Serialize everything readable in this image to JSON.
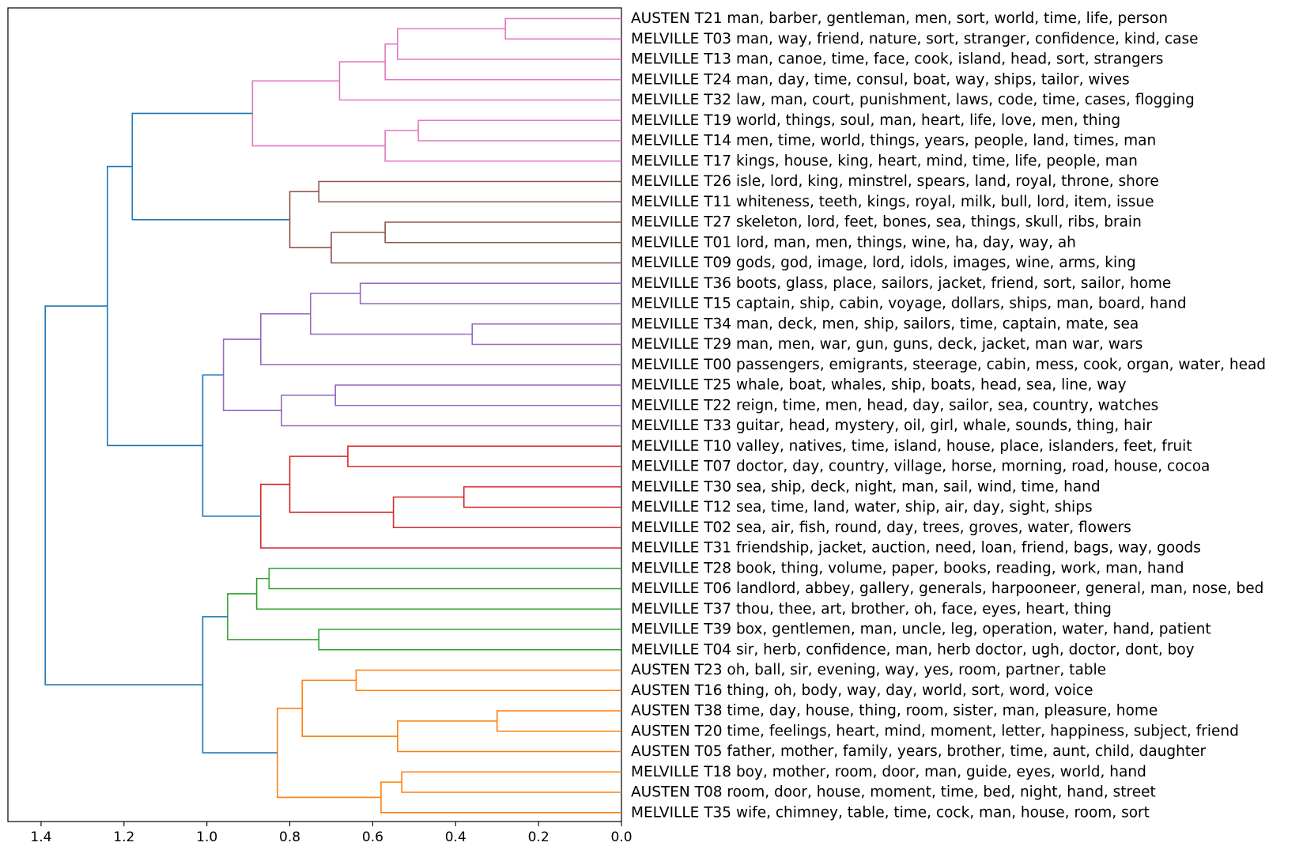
{
  "chart_data": {
    "type": "dendrogram",
    "orientation": "left",
    "xlim": [
      1.48,
      0.0
    ],
    "x_ticks": [
      1.4,
      1.2,
      1.0,
      0.8,
      0.6,
      0.4,
      0.2,
      0.0
    ],
    "x_tick_labels": [
      "1.4",
      "1.2",
      "1.0",
      "0.8",
      "0.6",
      "0.4",
      "0.2",
      "0.0"
    ],
    "colors": {
      "pink": "#e377c2",
      "brown": "#8c564b",
      "purple": "#9467bd",
      "red": "#d62728",
      "green": "#2ca02c",
      "orange": "#ff7f0e",
      "above_threshold": "#1f77b4"
    },
    "leaves": [
      {
        "label": "AUSTEN T21 man, barber, gentleman, men, sort, world, time, life, person"
      },
      {
        "label": "MELVILLE T03 man, way, friend, nature, sort, stranger, confidence, kind, case"
      },
      {
        "label": "MELVILLE T13 man, canoe, time, face, cook, island, head, sort, strangers"
      },
      {
        "label": "MELVILLE T24 man, day, time, consul, boat, way, ships, tailor, wives"
      },
      {
        "label": "MELVILLE T32 law, man, court, punishment, laws, code, time, cases, flogging"
      },
      {
        "label": "MELVILLE T19 world, things, soul, man, heart, life, love, men, thing"
      },
      {
        "label": "MELVILLE T14 men, time, world, things, years, people, land, times, man"
      },
      {
        "label": "MELVILLE T17 kings, house, king, heart, mind, time, life, people, man"
      },
      {
        "label": "MELVILLE T26 isle, lord, king, minstrel, spears, land, royal, throne, shore"
      },
      {
        "label": "MELVILLE T11 whiteness, teeth, kings, royal, milk, bull, lord, item, issue"
      },
      {
        "label": "MELVILLE T27 skeleton, lord, feet, bones, sea, things, skull, ribs, brain"
      },
      {
        "label": "MELVILLE T01 lord, man, men, things, wine, ha, day, way, ah"
      },
      {
        "label": "MELVILLE T09 gods, god, image, lord, idols, images, wine, arms, king"
      },
      {
        "label": "MELVILLE T36 boots, glass, place, sailors, jacket, friend, sort, sailor, home"
      },
      {
        "label": "MELVILLE T15 captain, ship, cabin, voyage, dollars, ships, man, board, hand"
      },
      {
        "label": "MELVILLE T34 man, deck, men, ship, sailors, time, captain, mate, sea"
      },
      {
        "label": "MELVILLE T29 man, men, war, gun, guns, deck, jacket, man war, wars"
      },
      {
        "label": "MELVILLE T00 passengers, emigrants, steerage, cabin, mess, cook, organ, water, head"
      },
      {
        "label": "MELVILLE T25 whale, boat, whales, ship, boats, head, sea, line, way"
      },
      {
        "label": "MELVILLE T22 reign, time, men, head, day, sailor, sea, country, watches"
      },
      {
        "label": "MELVILLE T33 guitar, head, mystery, oil, girl, whale, sounds, thing, hair"
      },
      {
        "label": "MELVILLE T10 valley, natives, time, island, house, place, islanders, feet, fruit"
      },
      {
        "label": "MELVILLE T07 doctor, day, country, village, horse, morning, road, house, cocoa"
      },
      {
        "label": "MELVILLE T30 sea, ship, deck, night, man, sail, wind, time, hand"
      },
      {
        "label": "MELVILLE T12 sea, time, land, water, ship, air, day, sight, ships"
      },
      {
        "label": "MELVILLE T02 sea, air, fish, round, day, trees, groves, water, flowers"
      },
      {
        "label": "MELVILLE T31 friendship, jacket, auction, need, loan, friend, bags, way, goods"
      },
      {
        "label": "MELVILLE T28 book, thing, volume, paper, books, reading, work, man, hand"
      },
      {
        "label": "MELVILLE T06 landlord, abbey, gallery, generals, harpooneer, general, man, nose, bed"
      },
      {
        "label": "MELVILLE T37 thou, thee, art, brother, oh, face, eyes, heart, thing"
      },
      {
        "label": "MELVILLE T39 box, gentlemen, man, uncle, leg, operation, water, hand, patient"
      },
      {
        "label": "MELVILLE T04 sir, herb, confidence, man, herb doctor, ugh, doctor, dont, boy"
      },
      {
        "label": "AUSTEN T23 oh, ball, sir, evening, way, yes, room, partner, table"
      },
      {
        "label": "AUSTEN T16 thing, oh, body, way, day, world, sort, word, voice"
      },
      {
        "label": "AUSTEN T38 time, day, house, thing, room, sister, man, pleasure, home"
      },
      {
        "label": "AUSTEN T20 time, feelings, heart, mind, moment, letter, happiness, subject, friend"
      },
      {
        "label": "AUSTEN T05 father, mother, family, years, brother, time, aunt, child, daughter"
      },
      {
        "label": "MELVILLE T18 boy, mother, room, door, man, guide, eyes, world, hand"
      },
      {
        "label": "AUSTEN T08 room, door, house, moment, time, bed, night, hand, street"
      },
      {
        "label": "MELVILLE T35 wife, chimney, table, time, cock, man, house, room, sort"
      }
    ],
    "merges": [
      {
        "id": "n1",
        "left": 0,
        "right": 1,
        "height": 0.28,
        "color": "pink"
      },
      {
        "id": "n2",
        "left": "n1",
        "right": 2,
        "height": 0.54,
        "color": "pink"
      },
      {
        "id": "n3",
        "left": "n2",
        "right": 3,
        "height": 0.57,
        "color": "pink"
      },
      {
        "id": "n4",
        "left": "n3",
        "right": 4,
        "height": 0.68,
        "color": "pink"
      },
      {
        "id": "n5",
        "left": 5,
        "right": 6,
        "height": 0.49,
        "color": "pink"
      },
      {
        "id": "n6",
        "left": "n5",
        "right": 7,
        "height": 0.57,
        "color": "pink"
      },
      {
        "id": "n7",
        "left": "n4",
        "right": "n6",
        "height": 0.89,
        "color": "pink"
      },
      {
        "id": "n8",
        "left": 8,
        "right": 9,
        "height": 0.73,
        "color": "brown"
      },
      {
        "id": "n9",
        "left": 10,
        "right": 11,
        "height": 0.57,
        "color": "brown"
      },
      {
        "id": "n10",
        "left": "n9",
        "right": 12,
        "height": 0.7,
        "color": "brown"
      },
      {
        "id": "n11",
        "left": "n8",
        "right": "n10",
        "height": 0.8,
        "color": "brown"
      },
      {
        "id": "n12",
        "left": "n7",
        "right": "n11",
        "height": 1.18,
        "color": "above_threshold"
      },
      {
        "id": "n13",
        "left": 13,
        "right": 14,
        "height": 0.63,
        "color": "purple"
      },
      {
        "id": "n14",
        "left": 15,
        "right": 16,
        "height": 0.36,
        "color": "purple"
      },
      {
        "id": "n15",
        "left": "n13",
        "right": "n14",
        "height": 0.75,
        "color": "purple"
      },
      {
        "id": "n16",
        "left": "n15",
        "right": 17,
        "height": 0.87,
        "color": "purple"
      },
      {
        "id": "n17",
        "left": 18,
        "right": 19,
        "height": 0.69,
        "color": "purple"
      },
      {
        "id": "n18",
        "left": "n17",
        "right": 20,
        "height": 0.82,
        "color": "purple"
      },
      {
        "id": "n19",
        "left": "n16",
        "right": "n18",
        "height": 0.96,
        "color": "purple"
      },
      {
        "id": "n20",
        "left": 21,
        "right": 22,
        "height": 0.66,
        "color": "red"
      },
      {
        "id": "n21",
        "left": 23,
        "right": 24,
        "height": 0.38,
        "color": "red"
      },
      {
        "id": "n22",
        "left": "n21",
        "right": 25,
        "height": 0.55,
        "color": "red"
      },
      {
        "id": "n23",
        "left": "n20",
        "right": "n22",
        "height": 0.8,
        "color": "red"
      },
      {
        "id": "n24",
        "left": "n23",
        "right": 26,
        "height": 0.87,
        "color": "red"
      },
      {
        "id": "n25",
        "left": "n19",
        "right": "n24",
        "height": 1.01,
        "color": "above_threshold"
      },
      {
        "id": "n26",
        "left": "n12",
        "right": "n25",
        "height": 1.24,
        "color": "above_threshold"
      },
      {
        "id": "n27",
        "left": 27,
        "right": 28,
        "height": 0.85,
        "color": "green"
      },
      {
        "id": "n28",
        "left": "n27",
        "right": 29,
        "height": 0.88,
        "color": "green"
      },
      {
        "id": "n29",
        "left": 30,
        "right": 31,
        "height": 0.73,
        "color": "green"
      },
      {
        "id": "n30",
        "left": "n28",
        "right": "n29",
        "height": 0.95,
        "color": "green"
      },
      {
        "id": "n31",
        "left": 32,
        "right": 33,
        "height": 0.64,
        "color": "orange"
      },
      {
        "id": "n32",
        "left": 34,
        "right": 35,
        "height": 0.3,
        "color": "orange"
      },
      {
        "id": "n33",
        "left": "n32",
        "right": 36,
        "height": 0.54,
        "color": "orange"
      },
      {
        "id": "n34",
        "left": "n31",
        "right": "n33",
        "height": 0.77,
        "color": "orange"
      },
      {
        "id": "n35",
        "left": 37,
        "right": 38,
        "height": 0.53,
        "color": "orange"
      },
      {
        "id": "n36",
        "left": "n35",
        "right": 39,
        "height": 0.58,
        "color": "orange"
      },
      {
        "id": "n37",
        "left": "n34",
        "right": "n36",
        "height": 0.83,
        "color": "orange"
      },
      {
        "id": "n38",
        "left": "n30",
        "right": "n37",
        "height": 1.01,
        "color": "above_threshold"
      },
      {
        "id": "n39",
        "left": "n26",
        "right": "n38",
        "height": 1.39,
        "color": "above_threshold"
      }
    ]
  }
}
